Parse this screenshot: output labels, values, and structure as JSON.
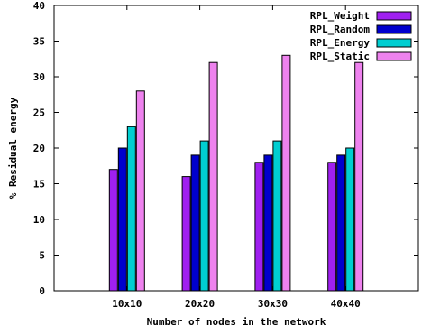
{
  "chart_data": {
    "type": "bar",
    "xlabel": "Number of nodes in the network",
    "ylabel": "% Residual energy",
    "ylim": [
      0,
      40
    ],
    "yticks": [
      0,
      5,
      10,
      15,
      20,
      25,
      30,
      35,
      40
    ],
    "categories": [
      "10x10",
      "20x20",
      "30x30",
      "40x40"
    ],
    "legend_position": "top-right",
    "series": [
      {
        "name": "RPL_Weight",
        "color": "#a020f0",
        "values": [
          17,
          16,
          18,
          18
        ]
      },
      {
        "name": "RPL_Random",
        "color": "#0000cd",
        "values": [
          20,
          19,
          19,
          19
        ]
      },
      {
        "name": "RPL_Energy",
        "color": "#00ced1",
        "values": [
          23,
          21,
          21,
          20
        ]
      },
      {
        "name": "RPL_Static",
        "color": "#ee82ee",
        "values": [
          28,
          32,
          33,
          32
        ]
      }
    ]
  }
}
